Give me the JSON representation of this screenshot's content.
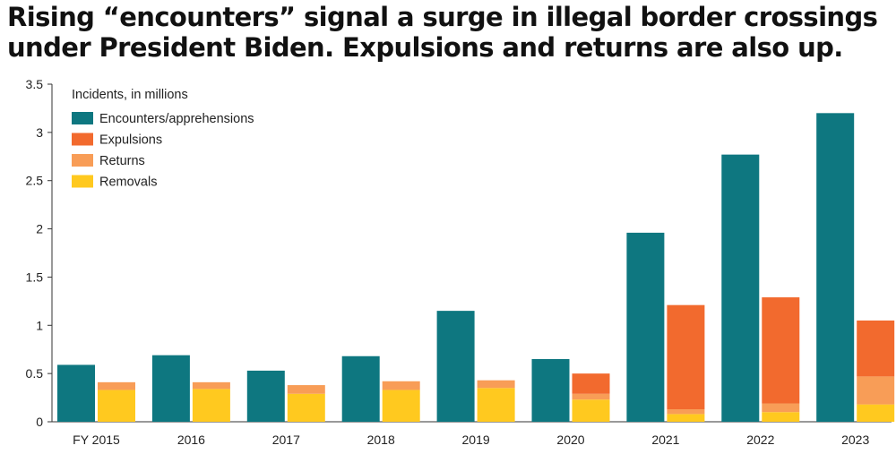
{
  "title_line1": "Rising “encounters” signal a surge in illegal border crossings",
  "title_line2": "under President Biden. Expulsions and returns are also up.",
  "chart_data": {
    "type": "bar",
    "categories": [
      "FY 2015",
      "2016",
      "2017",
      "2018",
      "2019",
      "2020",
      "2021",
      "2022",
      "2023"
    ],
    "unit_label": "Incidents, in millions",
    "ylim": [
      0,
      3.5
    ],
    "yticks": [
      "0",
      "0.5",
      "1",
      "1.5",
      "2",
      "2.5",
      "3",
      "3.5"
    ],
    "grid": false,
    "legend_position": "top-left",
    "series": [
      {
        "name": "Encounters/apprehensions",
        "color": "#0e7780",
        "stack": "a",
        "values": [
          0.59,
          0.69,
          0.53,
          0.68,
          1.15,
          0.65,
          1.96,
          2.77,
          3.2
        ]
      },
      {
        "name": "Removals",
        "color": "#ffc91f",
        "stack": "b",
        "values": [
          0.33,
          0.34,
          0.29,
          0.33,
          0.35,
          0.23,
          0.08,
          0.1,
          0.18
        ]
      },
      {
        "name": "Returns",
        "color": "#f89d57",
        "stack": "b",
        "values": [
          0.08,
          0.07,
          0.09,
          0.09,
          0.08,
          0.06,
          0.05,
          0.09,
          0.29
        ]
      },
      {
        "name": "Expulsions",
        "color": "#f26a2e",
        "stack": "b",
        "values": [
          0,
          0,
          0,
          0,
          0,
          0.21,
          1.08,
          1.1,
          0.58
        ]
      }
    ],
    "legend_order": [
      "Encounters/apprehensions",
      "Expulsions",
      "Returns",
      "Removals"
    ]
  }
}
